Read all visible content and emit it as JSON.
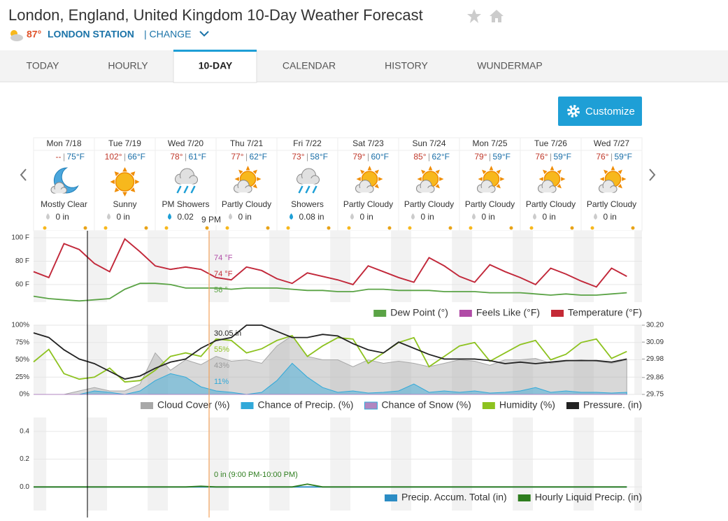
{
  "header": {
    "title": "London, England, United Kingdom 10-Day Weather Forecast",
    "temperature": "87°",
    "station": "LONDON STATION",
    "change": "| CHANGE"
  },
  "tabs": [
    "TODAY",
    "HOURLY",
    "10-DAY",
    "CALENDAR",
    "HISTORY",
    "WUNDERMAP"
  ],
  "active_tab": 2,
  "customize": "Customize",
  "days": [
    {
      "date": "Mon 7/18",
      "high": "--",
      "low": "75°F",
      "icon": "night",
      "condition": "Mostly Clear",
      "precip": "0 in",
      "precip_icon": "gray"
    },
    {
      "date": "Tue 7/19",
      "high": "102°",
      "low": "66°F",
      "icon": "sun",
      "condition": "Sunny",
      "precip": "0 in",
      "precip_icon": "gray"
    },
    {
      "date": "Wed 7/20",
      "high": "78°",
      "low": "61°F",
      "icon": "rain",
      "condition": "PM Showers",
      "precip": "0.02",
      "precip_icon": "blue"
    },
    {
      "date": "Thu 7/21",
      "high": "77°",
      "low": "62°F",
      "icon": "partly",
      "condition": "Partly Cloudy",
      "precip": "0 in",
      "precip_icon": "gray"
    },
    {
      "date": "Fri 7/22",
      "high": "73°",
      "low": "58°F",
      "icon": "rain",
      "condition": "Showers",
      "precip": "0.08 in",
      "precip_icon": "blue"
    },
    {
      "date": "Sat 7/23",
      "high": "79°",
      "low": "60°F",
      "icon": "partly",
      "condition": "Partly Cloudy",
      "precip": "0 in",
      "precip_icon": "gray"
    },
    {
      "date": "Sun 7/24",
      "high": "85°",
      "low": "62°F",
      "icon": "partly",
      "condition": "Partly Cloudy",
      "precip": "0 in",
      "precip_icon": "gray"
    },
    {
      "date": "Mon 7/25",
      "high": "79°",
      "low": "59°F",
      "icon": "partly",
      "condition": "Partly Cloudy",
      "precip": "0 in",
      "precip_icon": "gray"
    },
    {
      "date": "Tue 7/26",
      "high": "76°",
      "low": "59°F",
      "icon": "partly",
      "condition": "Partly Cloudy",
      "precip": "0 in",
      "precip_icon": "gray"
    },
    {
      "date": "Wed 7/27",
      "high": "76°",
      "low": "59°F",
      "icon": "partly",
      "condition": "Partly Cloudy",
      "precip": "0 in",
      "precip_icon": "gray"
    }
  ],
  "hover_time": "9 PM",
  "charts": [
    {
      "type": "line",
      "xlim": [
        0,
        240
      ],
      "x": [
        0,
        6,
        12,
        18,
        24,
        30,
        36,
        42,
        48,
        54,
        60,
        66,
        72,
        78,
        84,
        90,
        96,
        102,
        108,
        114,
        120,
        126,
        132,
        138,
        144,
        150,
        156,
        162,
        168,
        174,
        180,
        186,
        192,
        198,
        204,
        210,
        216,
        222,
        228,
        234
      ],
      "ylim": [
        45,
        106
      ],
      "yticks": [
        {
          "value": 100,
          "label": "100 F"
        },
        {
          "value": 80,
          "label": "80 F"
        },
        {
          "value": 60,
          "label": "60 F"
        }
      ],
      "series": [
        {
          "name": "Dew Point (°)",
          "color": "#5aa345",
          "kind": "line",
          "values": [
            50,
            48,
            47,
            46,
            47,
            48,
            56,
            61,
            61,
            60,
            57,
            57,
            57,
            56,
            57,
            57,
            57,
            56,
            55,
            55,
            54,
            54,
            56,
            56,
            55,
            55,
            55,
            54,
            54,
            54,
            53,
            53,
            53,
            52,
            51,
            52,
            51,
            51,
            52,
            53
          ]
        },
        {
          "name": "Feels Like (°F)",
          "color": "#b04ba6",
          "kind": "line",
          "values": [
            71,
            66,
            95,
            90,
            78,
            71,
            99,
            88,
            76,
            73,
            75,
            73,
            66,
            64,
            75,
            72,
            65,
            61,
            70,
            67,
            64,
            60,
            76,
            71,
            66,
            62,
            83,
            76,
            67,
            62,
            77,
            71,
            66,
            60,
            74,
            69,
            63,
            58,
            74,
            67
          ]
        },
        {
          "name": "Temperature (°F)",
          "color": "#c42a36",
          "kind": "line",
          "values": [
            71,
            66,
            95,
            90,
            78,
            71,
            99,
            88,
            76,
            73,
            75,
            73,
            66,
            64,
            75,
            72,
            65,
            61,
            70,
            67,
            64,
            60,
            76,
            71,
            66,
            62,
            83,
            76,
            67,
            62,
            77,
            71,
            66,
            60,
            74,
            69,
            63,
            58,
            74,
            67
          ]
        }
      ],
      "hover": [
        {
          "text": "74 °F",
          "color": "#b04ba6"
        },
        {
          "text": "74 °F",
          "color": "#c42a36"
        },
        {
          "text": "56 °",
          "color": "#5aa345"
        }
      ]
    },
    {
      "type": "line",
      "xlim": [
        0,
        240
      ],
      "x": [
        0,
        6,
        12,
        18,
        24,
        30,
        36,
        42,
        48,
        54,
        60,
        66,
        72,
        78,
        84,
        90,
        96,
        102,
        108,
        114,
        120,
        126,
        132,
        138,
        144,
        150,
        156,
        162,
        168,
        174,
        180,
        186,
        192,
        198,
        204,
        210,
        216,
        222,
        228,
        234
      ],
      "ylim": [
        0,
        100
      ],
      "yticks": [
        {
          "value": 100,
          "label": "100%"
        },
        {
          "value": 75,
          "label": "75%"
        },
        {
          "value": 50,
          "label": "50%"
        },
        {
          "value": 25,
          "label": "25%"
        },
        {
          "value": 0,
          "label": "0%"
        }
      ],
      "y2lim": [
        29.75,
        30.2
      ],
      "y2ticks": [
        {
          "value": 30.2,
          "label": "30.20"
        },
        30.09,
        29.98,
        29.86,
        29.75
      ],
      "series": [
        {
          "name": "Cloud Cover (%)",
          "color": "#a8a8a8",
          "kind": "area",
          "values": [
            0,
            0,
            0,
            5,
            10,
            5,
            5,
            15,
            60,
            35,
            50,
            43,
            55,
            48,
            50,
            45,
            70,
            85,
            55,
            50,
            50,
            40,
            50,
            45,
            48,
            45,
            40,
            45,
            50,
            48,
            42,
            50,
            50,
            52,
            45,
            48,
            50,
            48,
            45,
            50
          ]
        },
        {
          "name": "Chance of Precip. (%)",
          "color": "#32a9d9",
          "kind": "area",
          "values": [
            0,
            0,
            0,
            0,
            5,
            3,
            0,
            5,
            20,
            30,
            25,
            11,
            5,
            3,
            0,
            3,
            20,
            45,
            25,
            10,
            3,
            5,
            2,
            3,
            5,
            15,
            3,
            5,
            3,
            5,
            2,
            3,
            5,
            10,
            3,
            5,
            3,
            3,
            2,
            3
          ]
        },
        {
          "name": "Chance of Snow (%)",
          "color": "#b086c0",
          "kind": "area",
          "values": [
            0,
            0,
            0,
            0,
            0,
            0,
            0,
            0,
            0,
            0,
            0,
            0,
            0,
            0,
            0,
            0,
            0,
            0,
            0,
            0,
            0,
            0,
            0,
            0,
            0,
            0,
            0,
            0,
            0,
            0,
            0,
            0,
            0,
            0,
            0,
            0,
            0,
            0,
            0,
            0
          ]
        },
        {
          "name": "Humidity (%)",
          "color": "#8dc21f",
          "kind": "line",
          "values": [
            47,
            65,
            30,
            22,
            25,
            38,
            18,
            20,
            35,
            55,
            60,
            55,
            80,
            78,
            60,
            66,
            78,
            85,
            55,
            70,
            82,
            80,
            45,
            60,
            75,
            82,
            40,
            55,
            70,
            75,
            48,
            60,
            72,
            78,
            50,
            58,
            75,
            80,
            52,
            62
          ]
        },
        {
          "name": "Pressure. (in)",
          "color": "#222222",
          "kind": "line",
          "axis": "y2",
          "values": [
            30.15,
            30.12,
            30.04,
            29.98,
            29.95,
            29.9,
            29.85,
            29.87,
            29.92,
            29.96,
            29.98,
            30.05,
            30.1,
            30.12,
            30.2,
            30.2,
            30.16,
            30.12,
            30.12,
            30.14,
            30.13,
            30.08,
            30.04,
            30.02,
            30.09,
            30.05,
            30.01,
            29.98,
            29.98,
            29.98,
            29.97,
            29.95,
            29.96,
            29.95,
            29.96,
            29.97,
            29.97,
            29.97,
            29.96,
            29.98
          ]
        }
      ],
      "hover": [
        {
          "text": "30.05 in",
          "color": "#222222"
        },
        {
          "text": "55%",
          "color": "#8dc21f"
        },
        {
          "text": "43%",
          "color": "#999999"
        },
        {
          "text": "11%",
          "color": "#32a9d9"
        }
      ]
    },
    {
      "type": "line",
      "xlim": [
        0,
        240
      ],
      "x": [
        0,
        6,
        12,
        18,
        24,
        30,
        36,
        42,
        48,
        54,
        60,
        66,
        72,
        78,
        84,
        90,
        96,
        102,
        108,
        114,
        120,
        126,
        132,
        138,
        144,
        150,
        156,
        162,
        168,
        174,
        180,
        186,
        192,
        198,
        204,
        210,
        216,
        222,
        228,
        234
      ],
      "ylim": [
        -0.17,
        0.5
      ],
      "yticks": [
        0.4,
        0.2,
        {
          "value": 0,
          "label": "0.0"
        }
      ],
      "series": [
        {
          "name": "Precip. Accum. Total (in)",
          "color": "#2b8cc4",
          "kind": "line",
          "values": [
            0,
            0,
            0,
            0,
            0,
            0,
            0,
            0,
            0,
            0,
            0,
            0,
            0,
            0,
            0,
            0,
            0,
            0,
            0,
            0,
            0,
            0,
            0,
            0,
            0,
            0,
            0,
            0,
            0,
            0,
            0,
            0,
            0,
            0,
            0,
            0,
            0,
            0,
            0,
            0
          ]
        },
        {
          "name": "Hourly Liquid Precip. (in)",
          "color": "#2e7d1e",
          "kind": "line",
          "values": [
            0,
            0,
            0,
            0,
            0,
            0,
            0,
            0,
            0,
            0,
            0,
            0.005,
            0,
            0,
            0,
            0,
            0,
            0,
            0.02,
            0,
            0,
            0,
            0,
            0,
            0,
            0,
            0,
            0,
            0,
            0,
            0,
            0,
            0,
            0,
            0,
            0,
            0,
            0,
            0,
            0
          ]
        }
      ],
      "hover": [
        {
          "text": "0 in (9:00 PM-10:00 PM)",
          "color": "#2e7d1e"
        }
      ]
    }
  ]
}
